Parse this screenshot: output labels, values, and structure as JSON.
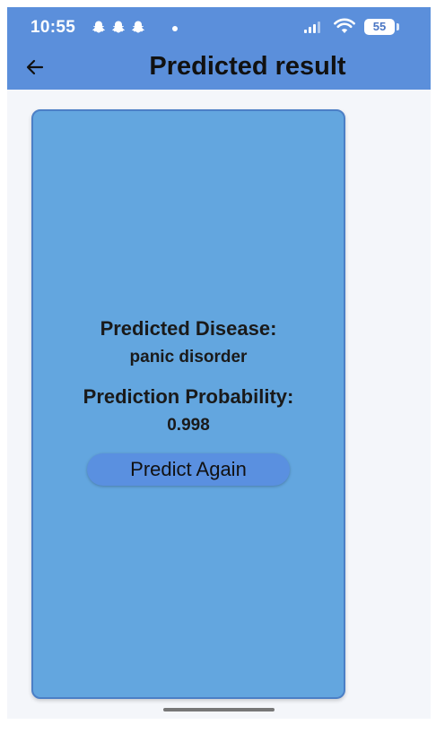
{
  "status_bar": {
    "time": "10:55",
    "battery": "55",
    "icons": [
      "snapchat-icon",
      "snapchat-icon",
      "snapchat-icon",
      "dot-icon",
      "signal-icon",
      "wifi-icon",
      "battery-icon"
    ]
  },
  "app_bar": {
    "title": "Predicted result",
    "back_icon": "arrow-left-icon",
    "color": "#5b8fdb"
  },
  "result_card": {
    "disease_label": "Predicted Disease:",
    "disease_value": "panic disorder",
    "probability_label": "Prediction Probability:",
    "probability_value": "0.998",
    "button_label": "Predict Again",
    "color": "#63a6df"
  }
}
